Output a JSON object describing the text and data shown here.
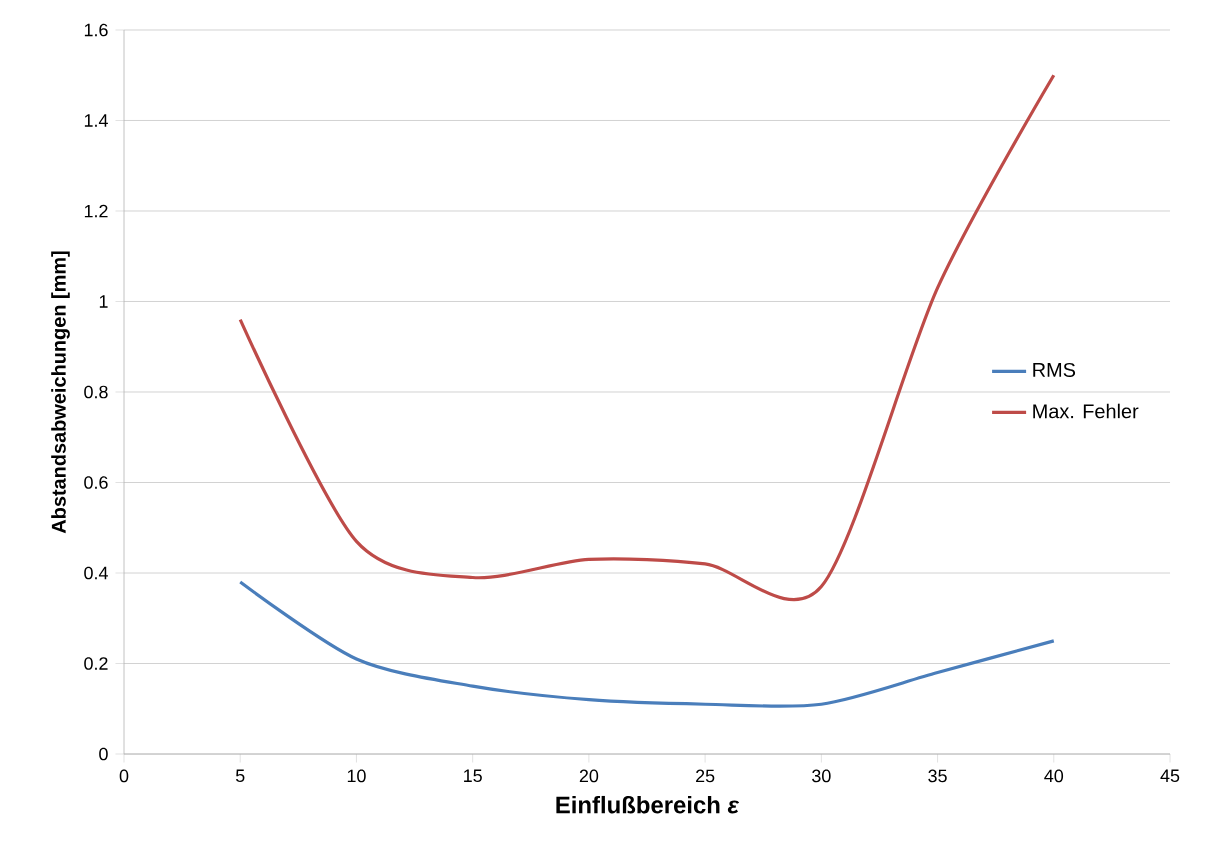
{
  "chart_data": {
    "type": "line",
    "xlabel": "Einflußbereich *ε*",
    "ylabel": "Abstandsabweichungen [mm]",
    "x": [
      5,
      10,
      15,
      20,
      25,
      30,
      35,
      40
    ],
    "series": [
      {
        "name": "RMS",
        "color": "#4a7ebb",
        "values": [
          0.38,
          0.21,
          0.15,
          0.12,
          0.11,
          0.11,
          0.18,
          0.25
        ]
      },
      {
        "name": "Max. Fehler",
        "color": "#be4b48",
        "values": [
          0.96,
          0.47,
          0.39,
          0.43,
          0.42,
          0.37,
          1.03,
          1.5
        ]
      }
    ],
    "xlim": [
      0,
      45
    ],
    "xticks": [
      0,
      5,
      10,
      15,
      20,
      25,
      30,
      35,
      40,
      45
    ],
    "ylim": [
      0,
      1.6
    ],
    "yticks": [
      0,
      0.2,
      0.4,
      0.6,
      0.8,
      1,
      1.2,
      1.4,
      1.6
    ],
    "grid": "y",
    "legend": "right",
    "marker": "none",
    "line_style": "solid"
  }
}
